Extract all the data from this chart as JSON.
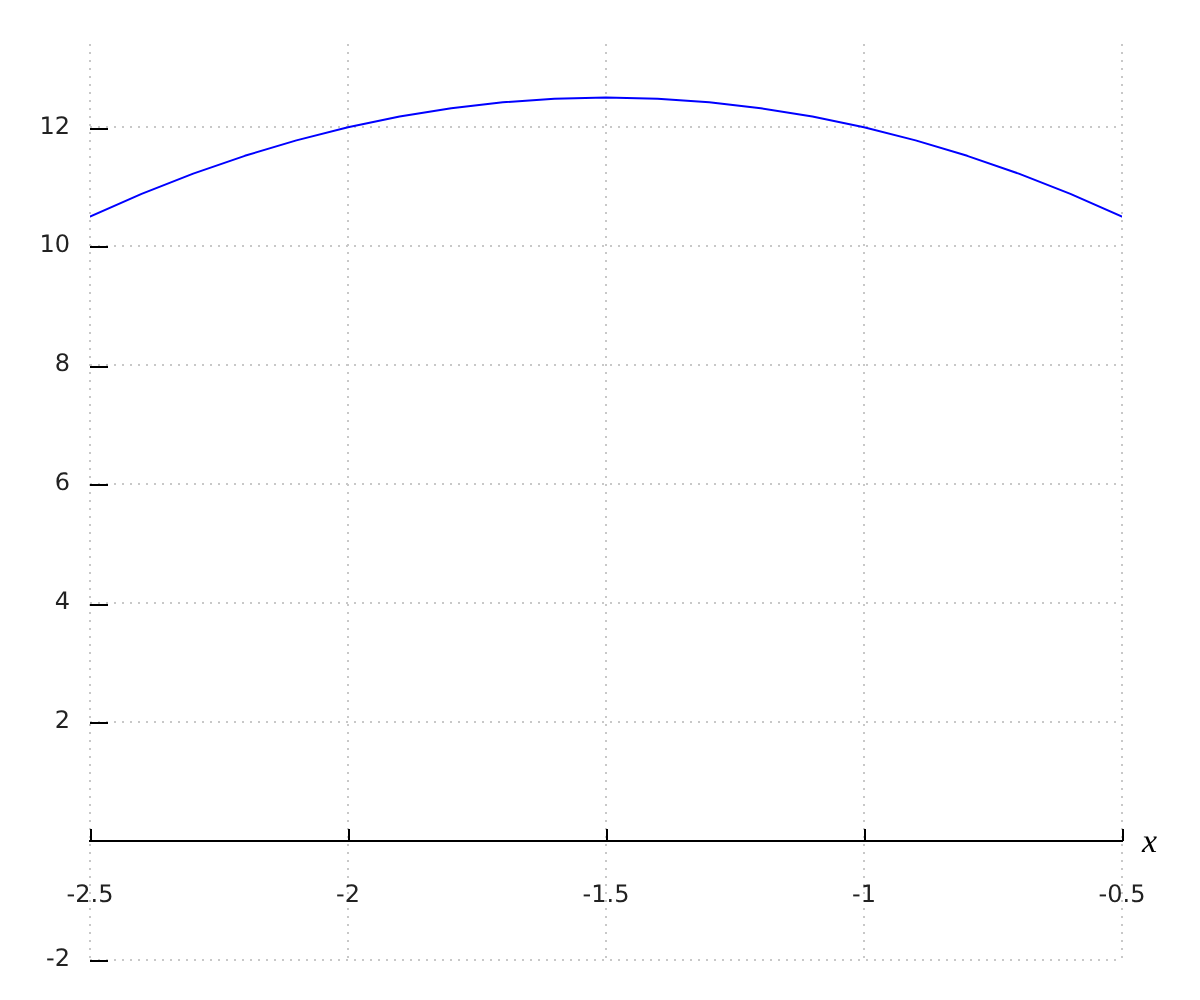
{
  "chart_data": {
    "type": "line",
    "xlabel": "x",
    "x": [
      -2.5,
      -2.4,
      -2.3,
      -2.2,
      -2.1,
      -2.0,
      -1.9,
      -1.8,
      -1.7,
      -1.6,
      -1.5,
      -1.4,
      -1.3,
      -1.2,
      -1.1,
      -1.0,
      -0.9,
      -0.8,
      -0.7,
      -0.6,
      -0.5
    ],
    "series": [
      {
        "color": "#0000ff",
        "values": [
          10.5,
          10.88,
          11.22,
          11.52,
          11.78,
          12.0,
          12.18,
          12.32,
          12.42,
          12.48,
          12.5,
          12.48,
          12.42,
          12.32,
          12.18,
          12.0,
          11.78,
          11.52,
          11.22,
          10.88,
          10.5
        ]
      }
    ],
    "xlim": [
      -2.5,
      -0.5
    ],
    "ylim": [
      -2,
      13.4
    ],
    "xticks": [
      -2.5,
      -2,
      -1.5,
      -1,
      -0.5
    ],
    "yticks": [
      -2,
      2,
      4,
      6,
      8,
      10,
      12
    ],
    "grid": true
  }
}
